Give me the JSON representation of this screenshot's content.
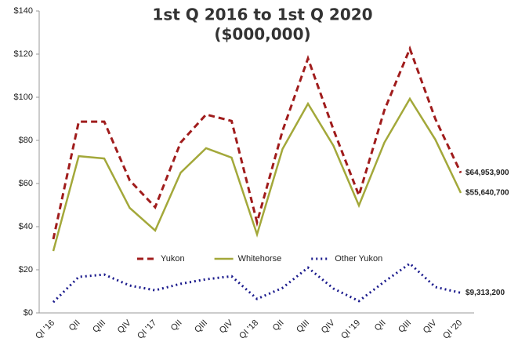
{
  "chart_data": {
    "type": "line",
    "title": [
      "1st Q 2016 to 1st Q 2020",
      "($000,000)"
    ],
    "categories": [
      "QI '16",
      "QII",
      "QIII",
      "QIV",
      "QI '17",
      "QII",
      "QIII",
      "QIV",
      "QI '18",
      "QII",
      "QIII",
      "QIV",
      "QI '19",
      "QII",
      "QIII",
      "QIV",
      "QI '20"
    ],
    "series": [
      {
        "name": "Yukon",
        "color": "#a01c1c",
        "dash": "8,5",
        "width": 3,
        "values": [
          34.2,
          88.7,
          88.7,
          61.5,
          49,
          79,
          92,
          89,
          42,
          84.4,
          118,
          85,
          54.5,
          94,
          122.5,
          90,
          64.9539
        ],
        "value_labels": [
          null,
          null,
          null,
          null,
          null,
          null,
          null,
          null,
          null,
          null,
          null,
          null,
          null,
          null,
          null,
          null,
          "$64,953,900"
        ]
      },
      {
        "name": "Whitehorse",
        "color": "#a3a83a",
        "dash": "none",
        "width": 2.5,
        "values": [
          28.7,
          72.7,
          71.6,
          48.7,
          38.2,
          65,
          76.4,
          72,
          36.4,
          76,
          97,
          77.5,
          49.8,
          79,
          99.3,
          80.4,
          55.6407
        ],
        "value_labels": [
          null,
          null,
          null,
          null,
          null,
          null,
          null,
          null,
          null,
          null,
          null,
          null,
          null,
          null,
          null,
          null,
          "$55,640,700"
        ]
      },
      {
        "name": "Other Yukon",
        "color": "#1a1a8c",
        "dash": "2,4",
        "width": 3,
        "values": [
          5,
          16.7,
          17.8,
          12.7,
          10.5,
          13.5,
          15.6,
          17,
          6.5,
          11.6,
          21,
          11.3,
          5.5,
          14.5,
          22.9,
          12,
          9.3132
        ],
        "value_labels": [
          null,
          null,
          null,
          null,
          null,
          null,
          null,
          null,
          null,
          null,
          null,
          null,
          null,
          null,
          null,
          null,
          "$9,313,200"
        ]
      }
    ],
    "ylim": [
      0,
      140
    ],
    "yticks": [
      {
        "value": 0,
        "label": "$0"
      },
      {
        "value": 20,
        "label": "$20"
      },
      {
        "value": 40,
        "label": "$40"
      },
      {
        "value": 60,
        "label": "$60"
      },
      {
        "value": 80,
        "label": "$80"
      },
      {
        "value": 100,
        "label": "$100"
      },
      {
        "value": 120,
        "label": "$120"
      },
      {
        "value": 140,
        "label": "$140"
      }
    ],
    "grid": false,
    "legend": "center"
  }
}
